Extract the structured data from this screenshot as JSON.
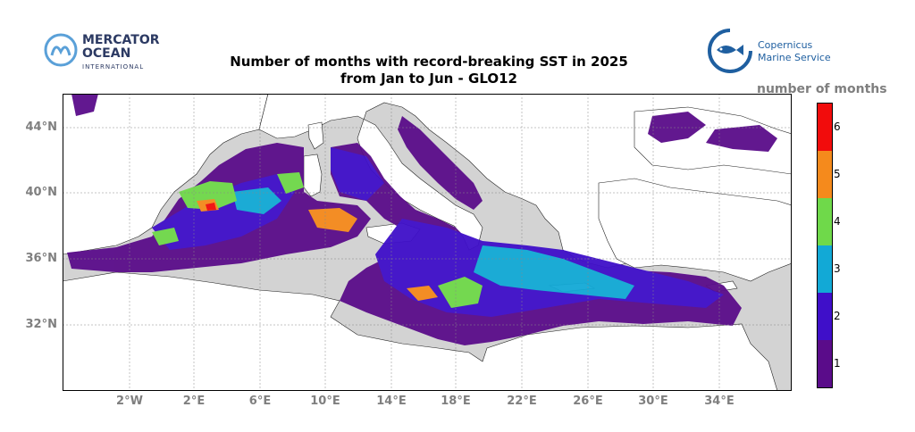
{
  "title": {
    "line1": "Number of months with record-breaking SST in 2025",
    "line2": "from Jan to Jun - GLO12"
  },
  "logos": {
    "mercator": {
      "line1": "MERCATOR",
      "line2": "OCEAN",
      "line3": "INTERNATIONAL"
    },
    "copernicus": {
      "line1": "Copernicus",
      "line2": "Marine Service"
    }
  },
  "colorbar": {
    "title": "number of months",
    "levels": [
      {
        "value": "1",
        "color": "#5a0c8a"
      },
      {
        "value": "2",
        "color": "#3f0fc9"
      },
      {
        "value": "3",
        "color": "#12a9d6"
      },
      {
        "value": "4",
        "color": "#6fd94a"
      },
      {
        "value": "5",
        "color": "#f58a1c"
      },
      {
        "value": "6",
        "color": "#f20c0c"
      }
    ]
  },
  "map": {
    "land_color": "#ffffff",
    "nodata_color": "#d3d3d3",
    "lat_labels": [
      "44°N",
      "40°N",
      "36°N",
      "32°N"
    ],
    "lon_labels": [
      "2°W",
      "2°E",
      "6°E",
      "10°E",
      "14°E",
      "18°E",
      "22°E",
      "26°E",
      "30°E",
      "34°E"
    ]
  }
}
